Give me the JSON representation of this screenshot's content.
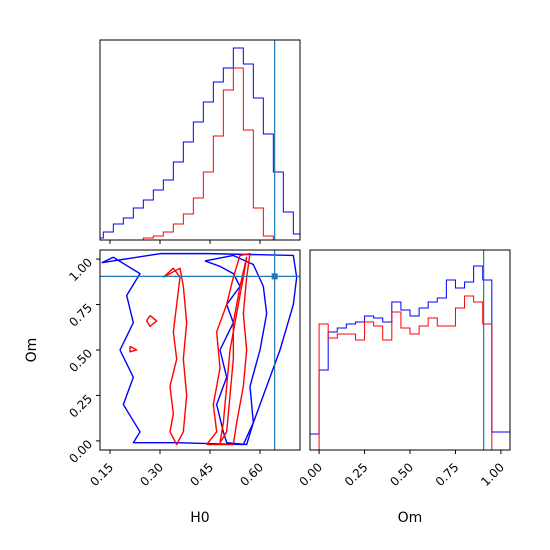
{
  "chart_data": {
    "type": "corner",
    "parameters": [
      "H0",
      "Om"
    ],
    "truths": {
      "H0": 0.644,
      "Om": 0.905
    },
    "colors": {
      "blue": "#0000ff",
      "red": "#ff0000",
      "truth": "#1f77b4"
    },
    "panels": [
      {
        "id": "H0-marginal",
        "type": "histogram",
        "xlim": [
          0.12,
          0.72
        ],
        "x_ticks": [
          0.15,
          0.3,
          0.45,
          0.6
        ],
        "x_tick_labels_shown": false,
        "y_ticks_shown": false,
        "bins": [
          0.1,
          0.13,
          0.16,
          0.19,
          0.22,
          0.25,
          0.28,
          0.31,
          0.34,
          0.37,
          0.4,
          0.43,
          0.46,
          0.49,
          0.52,
          0.55,
          0.58,
          0.61,
          0.64,
          0.67,
          0.7,
          0.73
        ],
        "series": [
          {
            "name": "blue",
            "color": "blue",
            "values": [
              0.01,
              0.04,
              0.08,
              0.11,
              0.16,
              0.2,
              0.25,
              0.3,
              0.39,
              0.49,
              0.59,
              0.69,
              0.79,
              0.86,
              0.96,
              0.88,
              0.71,
              0.53,
              0.34,
              0.14,
              0.03
            ]
          },
          {
            "name": "red",
            "color": "red",
            "values": [
              0,
              0,
              0,
              0,
              0,
              0.01,
              0.02,
              0.04,
              0.08,
              0.13,
              0.21,
              0.34,
              0.52,
              0.75,
              0.86,
              0.55,
              0.16,
              0.02,
              0,
              0,
              0
            ]
          }
        ]
      },
      {
        "id": "H0-Om-contour",
        "type": "contour",
        "xlabel": "H0",
        "ylabel": "Om",
        "xlim": [
          0.12,
          0.72
        ],
        "ylim": [
          -0.05,
          1.05
        ],
        "x_ticks": [
          0.15,
          0.3,
          0.45,
          0.6
        ],
        "x_tick_labels": [
          "0.15",
          "0.30",
          "0.45",
          "0.60"
        ],
        "y_ticks": [
          0.0,
          0.25,
          0.5,
          0.75,
          1.0
        ],
        "y_tick_labels": [
          "0.00",
          "0.25",
          "0.50",
          "0.75",
          "1.00"
        ],
        "contours": [
          {
            "color": "blue",
            "level": "outer",
            "points": [
              [
                0.125,
                0.98
              ],
              [
                0.16,
                1.01
              ],
              [
                0.24,
                0.92
              ],
              [
                0.2,
                0.8
              ],
              [
                0.22,
                0.65
              ],
              [
                0.18,
                0.5
              ],
              [
                0.22,
                0.35
              ],
              [
                0.19,
                0.2
              ],
              [
                0.24,
                0.05
              ],
              [
                0.22,
                -0.01
              ],
              [
                0.35,
                -0.01
              ],
              [
                0.55,
                -0.02
              ],
              [
                0.58,
                0.1
              ],
              [
                0.62,
                0.3
              ],
              [
                0.66,
                0.5
              ],
              [
                0.7,
                0.75
              ],
              [
                0.71,
                0.9
              ],
              [
                0.7,
                1.02
              ],
              [
                0.45,
                1.03
              ],
              [
                0.3,
                1.03
              ],
              [
                0.125,
                0.98
              ]
            ]
          },
          {
            "color": "blue",
            "level": "inner",
            "points": [
              [
                0.435,
                0.99
              ],
              [
                0.48,
                0.96
              ],
              [
                0.52,
                0.92
              ],
              [
                0.54,
                0.85
              ],
              [
                0.5,
                0.75
              ],
              [
                0.52,
                0.65
              ],
              [
                0.48,
                0.5
              ],
              [
                0.5,
                0.35
              ],
              [
                0.47,
                0.2
              ],
              [
                0.49,
                0.05
              ],
              [
                0.5,
                -0.01
              ],
              [
                0.56,
                -0.02
              ],
              [
                0.58,
                0.1
              ],
              [
                0.57,
                0.3
              ],
              [
                0.6,
                0.5
              ],
              [
                0.62,
                0.7
              ],
              [
                0.61,
                0.85
              ],
              [
                0.58,
                0.97
              ],
              [
                0.52,
                1.02
              ],
              [
                0.435,
                0.99
              ]
            ]
          },
          {
            "color": "red",
            "level": "outer",
            "points": [
              [
                0.31,
                0.9
              ],
              [
                0.34,
                0.95
              ],
              [
                0.36,
                0.9
              ],
              [
                0.35,
                0.75
              ],
              [
                0.34,
                0.6
              ],
              [
                0.35,
                0.45
              ],
              [
                0.33,
                0.3
              ],
              [
                0.34,
                0.15
              ],
              [
                0.33,
                0.05
              ],
              [
                0.35,
                -0.02
              ],
              [
                0.37,
                0.05
              ],
              [
                0.38,
                0.25
              ],
              [
                0.37,
                0.45
              ],
              [
                0.38,
                0.65
              ],
              [
                0.37,
                0.85
              ],
              [
                0.36,
                0.95
              ],
              [
                0.31,
                0.9
              ]
            ]
          },
          {
            "color": "red",
            "level": "outer",
            "points": [
              [
                0.44,
                -0.02
              ],
              [
                0.47,
                0.05
              ],
              [
                0.46,
                0.2
              ],
              [
                0.48,
                0.4
              ],
              [
                0.47,
                0.6
              ],
              [
                0.5,
                0.75
              ],
              [
                0.52,
                0.9
              ],
              [
                0.54,
                1.02
              ],
              [
                0.57,
                1.03
              ],
              [
                0.56,
                0.9
              ],
              [
                0.55,
                0.7
              ],
              [
                0.56,
                0.5
              ],
              [
                0.55,
                0.3
              ],
              [
                0.53,
                0.1
              ],
              [
                0.52,
                -0.02
              ],
              [
                0.44,
                -0.02
              ]
            ]
          },
          {
            "color": "red",
            "level": "inner",
            "points": [
              [
                0.48,
                -0.01
              ],
              [
                0.49,
                0.1
              ],
              [
                0.5,
                0.3
              ],
              [
                0.51,
                0.5
              ],
              [
                0.53,
                0.7
              ],
              [
                0.55,
                0.9
              ],
              [
                0.56,
                1.01
              ],
              [
                0.54,
                0.85
              ],
              [
                0.52,
                0.65
              ],
              [
                0.52,
                0.45
              ],
              [
                0.51,
                0.25
              ],
              [
                0.5,
                0.05
              ],
              [
                0.48,
                -0.01
              ]
            ]
          },
          {
            "color": "red",
            "level": "speck",
            "points": [
              [
                0.27,
                0.69
              ],
              [
                0.29,
                0.66
              ],
              [
                0.27,
                0.63
              ],
              [
                0.26,
                0.66
              ],
              [
                0.27,
                0.69
              ]
            ]
          },
          {
            "color": "red",
            "level": "speck",
            "points": [
              [
                0.21,
                0.52
              ],
              [
                0.23,
                0.5
              ],
              [
                0.21,
                0.49
              ],
              [
                0.21,
                0.52
              ]
            ]
          }
        ]
      },
      {
        "id": "Om-marginal",
        "type": "histogram",
        "xlabel": "Om",
        "xlim": [
          -0.05,
          1.05
        ],
        "x_ticks": [
          0.0,
          0.25,
          0.5,
          0.75,
          1.0
        ],
        "x_tick_labels": [
          "0.00",
          "0.25",
          "0.50",
          "0.75",
          "1.00"
        ],
        "y_ticks_shown": false,
        "bins": [
          -0.05,
          0.0,
          0.05,
          0.1,
          0.15,
          0.2,
          0.25,
          0.3,
          0.35,
          0.4,
          0.45,
          0.5,
          0.55,
          0.6,
          0.65,
          0.7,
          0.75,
          0.8,
          0.85,
          0.9,
          0.95,
          1.0,
          1.05
        ],
        "series": [
          {
            "name": "blue",
            "color": "blue",
            "values": [
              0.08,
              0.4,
              0.59,
              0.61,
              0.63,
              0.64,
              0.67,
              0.66,
              0.64,
              0.74,
              0.7,
              0.67,
              0.71,
              0.74,
              0.76,
              0.85,
              0.81,
              0.84,
              0.92,
              0.85,
              0.09,
              0.09
            ]
          },
          {
            "name": "red",
            "color": "red",
            "values": [
              0,
              0.63,
              0.56,
              0.58,
              0.58,
              0.55,
              0.64,
              0.62,
              0.55,
              0.69,
              0.61,
              0.58,
              0.62,
              0.66,
              0.62,
              0.62,
              0.71,
              0.77,
              0.74,
              0.63,
              0,
              0
            ]
          }
        ]
      }
    ]
  }
}
